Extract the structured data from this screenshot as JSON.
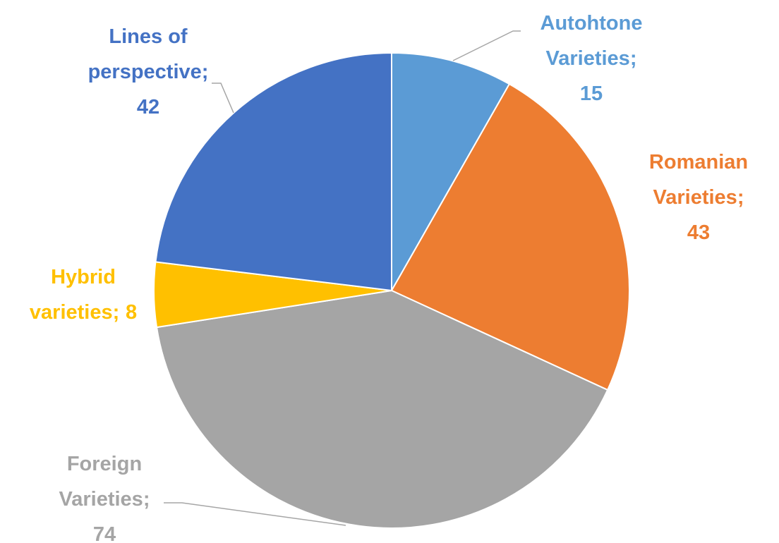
{
  "chart_data": {
    "type": "pie",
    "categories": [
      "Autohtone Varieties;",
      "Romanian Varieties;",
      "Foreign Varieties;",
      "Hybrid varieties;",
      "Lines of perspective;"
    ],
    "values": [
      15,
      43,
      74,
      8,
      42
    ],
    "colors": [
      "#5b9bd5",
      "#ed7d31",
      "#a5a5a5",
      "#ffc000",
      "#4472c4"
    ]
  }
}
